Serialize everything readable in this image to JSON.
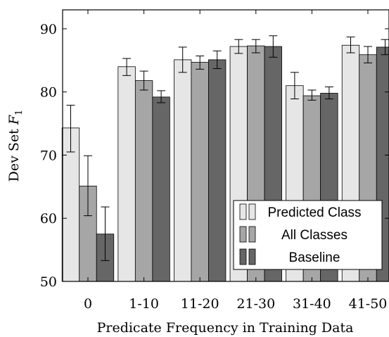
{
  "chart_data": {
    "type": "bar",
    "categories": [
      "0",
      "1-10",
      "11-20",
      "21-30",
      "31-40",
      "41-50"
    ],
    "xlabel": "Predicate Frequency in Training Data",
    "ylabel": {
      "prefix": "Dev Set ",
      "symbol": "F",
      "subscript": "1"
    },
    "ylim": [
      50,
      93
    ],
    "yticks": [
      "50",
      "60",
      "70",
      "80",
      "90"
    ],
    "grid": false,
    "legend_position": "bottom-right",
    "series": [
      {
        "name": "Predicted Class",
        "color": "#e6e6e6",
        "values": [
          74.3,
          84.0,
          85.1,
          87.2,
          81.0,
          87.4
        ],
        "err_low": [
          70.5,
          82.6,
          83.1,
          86.1,
          78.9,
          86.2
        ],
        "err_high": [
          77.9,
          85.3,
          87.1,
          88.3,
          83.1,
          88.7
        ]
      },
      {
        "name": "All Classes",
        "color": "#a6a6a6",
        "values": [
          65.1,
          81.8,
          84.7,
          87.3,
          79.4,
          85.9
        ],
        "err_low": [
          60.4,
          80.3,
          83.6,
          86.2,
          78.7,
          84.6
        ],
        "err_high": [
          69.9,
          83.3,
          85.7,
          88.3,
          80.3,
          87.2
        ]
      },
      {
        "name": "Baseline",
        "color": "#666666",
        "values": [
          57.5,
          79.2,
          85.1,
          87.2,
          79.8,
          87.1
        ],
        "err_low": [
          53.3,
          78.3,
          83.7,
          85.5,
          78.9,
          85.9
        ],
        "err_high": [
          61.8,
          80.2,
          86.5,
          88.9,
          80.8,
          88.3
        ]
      }
    ]
  }
}
